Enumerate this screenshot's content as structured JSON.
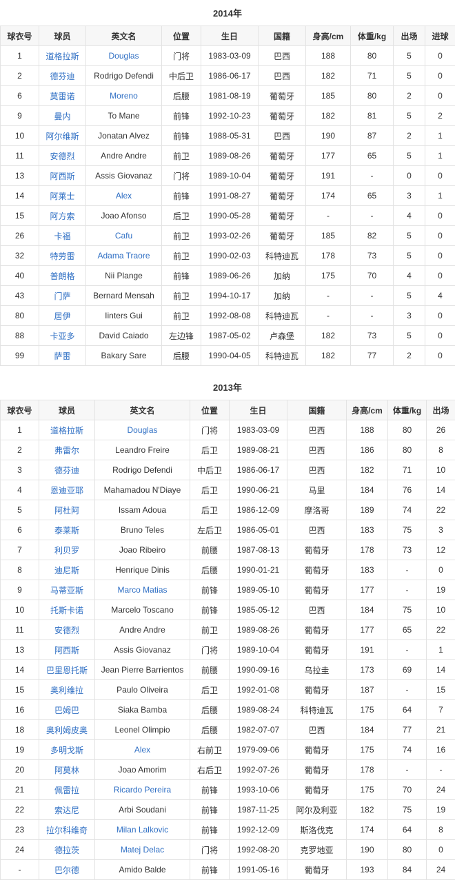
{
  "colors": {
    "link": "#2f6fc4",
    "text": "#333333",
    "header_bg": "#f7f7f7",
    "border": "#e3e3e3"
  },
  "season2014": {
    "title": "2014年",
    "headers": [
      "球衣号",
      "球员",
      "英文名",
      "位置",
      "生日",
      "国籍",
      "身高/cm",
      "体重/kg",
      "出场",
      "进球"
    ],
    "rows": [
      {
        "cells": [
          "1",
          "道格拉斯",
          "Douglas",
          "门将",
          "1983-03-09",
          "巴西",
          "188",
          "80",
          "5",
          "0"
        ],
        "en_link": true
      },
      {
        "cells": [
          "2",
          "德芬迪",
          "Rodrigo Defendi",
          "中后卫",
          "1986-06-17",
          "巴西",
          "182",
          "71",
          "5",
          "0"
        ],
        "en_link": false
      },
      {
        "cells": [
          "6",
          "莫雷诺",
          "Moreno",
          "后腰",
          "1981-08-19",
          "葡萄牙",
          "185",
          "80",
          "2",
          "0"
        ],
        "en_link": true
      },
      {
        "cells": [
          "9",
          "曼内",
          "To Mane",
          "前锋",
          "1992-10-23",
          "葡萄牙",
          "182",
          "81",
          "5",
          "2"
        ],
        "en_link": false
      },
      {
        "cells": [
          "10",
          "阿尔维斯",
          "Jonatan Alvez",
          "前锋",
          "1988-05-31",
          "巴西",
          "190",
          "87",
          "2",
          "1"
        ],
        "en_link": false
      },
      {
        "cells": [
          "11",
          "安德烈",
          "Andre Andre",
          "前卫",
          "1989-08-26",
          "葡萄牙",
          "177",
          "65",
          "5",
          "1"
        ],
        "en_link": false
      },
      {
        "cells": [
          "13",
          "阿西斯",
          "Assis Giovanaz",
          "门将",
          "1989-10-04",
          "葡萄牙",
          "191",
          "-",
          "0",
          "0"
        ],
        "en_link": false
      },
      {
        "cells": [
          "14",
          "阿莱士",
          "Alex",
          "前锋",
          "1991-08-27",
          "葡萄牙",
          "174",
          "65",
          "3",
          "1"
        ],
        "en_link": true
      },
      {
        "cells": [
          "15",
          "阿方索",
          "Joao Afonso",
          "后卫",
          "1990-05-28",
          "葡萄牙",
          "-",
          "-",
          "4",
          "0"
        ],
        "en_link": false
      },
      {
        "cells": [
          "26",
          "卡福",
          "Cafu",
          "前卫",
          "1993-02-26",
          "葡萄牙",
          "185",
          "82",
          "5",
          "0"
        ],
        "en_link": true
      },
      {
        "cells": [
          "32",
          "特劳雷",
          "Adama Traore",
          "前卫",
          "1990-02-03",
          "科特迪瓦",
          "178",
          "73",
          "5",
          "0"
        ],
        "en_link": true
      },
      {
        "cells": [
          "40",
          "普朗格",
          "Nii Plange",
          "前锋",
          "1989-06-26",
          "加纳",
          "175",
          "70",
          "4",
          "0"
        ],
        "en_link": false
      },
      {
        "cells": [
          "43",
          "门萨",
          "Bernard Mensah",
          "前卫",
          "1994-10-17",
          "加纳",
          "-",
          "-",
          "5",
          "4"
        ],
        "en_link": false
      },
      {
        "cells": [
          "80",
          "居伊",
          "Iinters Gui",
          "前卫",
          "1992-08-08",
          "科特迪瓦",
          "-",
          "-",
          "3",
          "0"
        ],
        "en_link": false
      },
      {
        "cells": [
          "88",
          "卡亚多",
          "David Caiado",
          "左边锋",
          "1987-05-02",
          "卢森堡",
          "182",
          "73",
          "5",
          "0"
        ],
        "en_link": false
      },
      {
        "cells": [
          "99",
          "萨雷",
          "Bakary Sare",
          "后腰",
          "1990-04-05",
          "科特迪瓦",
          "182",
          "77",
          "2",
          "0"
        ],
        "en_link": false
      }
    ]
  },
  "season2013": {
    "title": "2013年",
    "headers": [
      "球衣号",
      "球员",
      "英文名",
      "位置",
      "生日",
      "国籍",
      "身高/cm",
      "体重/kg",
      "出场"
    ],
    "rows": [
      {
        "cells": [
          "1",
          "道格拉斯",
          "Douglas",
          "门将",
          "1983-03-09",
          "巴西",
          "188",
          "80",
          "26"
        ],
        "en_link": true
      },
      {
        "cells": [
          "2",
          "弗雷尔",
          "Leandro Freire",
          "后卫",
          "1989-08-21",
          "巴西",
          "186",
          "80",
          "8"
        ],
        "en_link": false
      },
      {
        "cells": [
          "3",
          "德芬迪",
          "Rodrigo Defendi",
          "中后卫",
          "1986-06-17",
          "巴西",
          "182",
          "71",
          "10"
        ],
        "en_link": false
      },
      {
        "cells": [
          "4",
          "恩迪亚耶",
          "Mahamadou N'Diaye",
          "后卫",
          "1990-06-21",
          "马里",
          "184",
          "76",
          "14"
        ],
        "en_link": false
      },
      {
        "cells": [
          "5",
          "阿杜阿",
          "Issam Adoua",
          "后卫",
          "1986-12-09",
          "摩洛哥",
          "189",
          "74",
          "22"
        ],
        "en_link": false
      },
      {
        "cells": [
          "6",
          "泰莱斯",
          "Bruno Teles",
          "左后卫",
          "1986-05-01",
          "巴西",
          "183",
          "75",
          "3"
        ],
        "en_link": false
      },
      {
        "cells": [
          "7",
          "利贝罗",
          "Joao Ribeiro",
          "前腰",
          "1987-08-13",
          "葡萄牙",
          "178",
          "73",
          "12"
        ],
        "en_link": false
      },
      {
        "cells": [
          "8",
          "迪尼斯",
          "Henrique Dinis",
          "后腰",
          "1990-01-21",
          "葡萄牙",
          "183",
          "-",
          "0"
        ],
        "en_link": false
      },
      {
        "cells": [
          "9",
          "马蒂亚斯",
          "Marco Matias",
          "前锋",
          "1989-05-10",
          "葡萄牙",
          "177",
          "-",
          "19"
        ],
        "en_link": true
      },
      {
        "cells": [
          "10",
          "托斯卡诺",
          "Marcelo Toscano",
          "前锋",
          "1985-05-12",
          "巴西",
          "184",
          "75",
          "10"
        ],
        "en_link": false
      },
      {
        "cells": [
          "11",
          "安德烈",
          "Andre Andre",
          "前卫",
          "1989-08-26",
          "葡萄牙",
          "177",
          "65",
          "22"
        ],
        "en_link": false
      },
      {
        "cells": [
          "13",
          "阿西斯",
          "Assis Giovanaz",
          "门将",
          "1989-10-04",
          "葡萄牙",
          "191",
          "-",
          "1"
        ],
        "en_link": false
      },
      {
        "cells": [
          "14",
          "巴里恩托斯",
          "Jean Pierre Barrientos",
          "前腰",
          "1990-09-16",
          "乌拉圭",
          "173",
          "69",
          "14"
        ],
        "en_link": false
      },
      {
        "cells": [
          "15",
          "奥利维拉",
          "Paulo Oliveira",
          "后卫",
          "1992-01-08",
          "葡萄牙",
          "187",
          "-",
          "15"
        ],
        "en_link": false
      },
      {
        "cells": [
          "16",
          "巴姆巴",
          "Siaka Bamba",
          "后腰",
          "1989-08-24",
          "科特迪瓦",
          "175",
          "64",
          "7"
        ],
        "en_link": false
      },
      {
        "cells": [
          "18",
          "奥利姆皮奥",
          "Leonel Olimpio",
          "后腰",
          "1982-07-07",
          "巴西",
          "184",
          "77",
          "21"
        ],
        "en_link": false
      },
      {
        "cells": [
          "19",
          "多明戈斯",
          "Alex",
          "右前卫",
          "1979-09-06",
          "葡萄牙",
          "175",
          "74",
          "16"
        ],
        "en_link": true
      },
      {
        "cells": [
          "20",
          "阿莫林",
          "Joao Amorim",
          "右后卫",
          "1992-07-26",
          "葡萄牙",
          "178",
          "-",
          "-"
        ],
        "en_link": false
      },
      {
        "cells": [
          "21",
          "佩雷拉",
          "Ricardo Pereira",
          "前锋",
          "1993-10-06",
          "葡萄牙",
          "175",
          "70",
          "24"
        ],
        "en_link": true
      },
      {
        "cells": [
          "22",
          "索达尼",
          "Arbi Soudani",
          "前锋",
          "1987-11-25",
          "阿尔及利亚",
          "182",
          "75",
          "19"
        ],
        "en_link": false
      },
      {
        "cells": [
          "23",
          "拉尔科维奇",
          "Milan Lalkovic",
          "前锋",
          "1992-12-09",
          "斯洛伐克",
          "174",
          "64",
          "8"
        ],
        "en_link": true
      },
      {
        "cells": [
          "24",
          "德拉茨",
          "Matej Delac",
          "门将",
          "1992-08-20",
          "克罗地亚",
          "190",
          "80",
          "0"
        ],
        "en_link": true
      },
      {
        "cells": [
          "-",
          "巴尔德",
          "Amido Balde",
          "前锋",
          "1991-05-16",
          "葡萄牙",
          "193",
          "84",
          "24"
        ],
        "en_link": false
      }
    ]
  }
}
